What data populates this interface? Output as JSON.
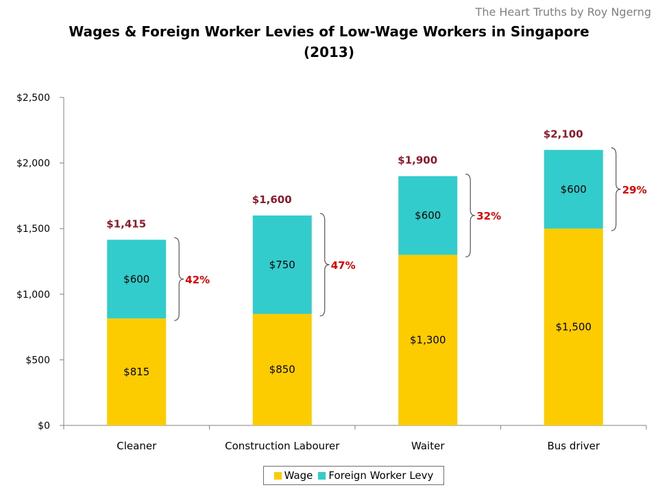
{
  "credit": "The Heart Truths by Roy Ngerng",
  "colors": {
    "wage": "#fccc00",
    "levy": "#33cccc",
    "total_label": "#8b1a2b",
    "pct_label": "#e00000",
    "axis": "#808080"
  },
  "chart_data": {
    "type": "bar",
    "stacked": true,
    "title": "Wages & Foreign Worker Levies of Low-Wage Workers in Singapore",
    "subtitle": "(2013)",
    "categories": [
      "Cleaner",
      "Construction Labourer",
      "Waiter",
      "Bus driver"
    ],
    "series": [
      {
        "name": "Wage",
        "values": [
          815,
          850,
          1300,
          1500
        ],
        "labels": [
          "$815",
          "$850",
          "$1,300",
          "$1,500"
        ]
      },
      {
        "name": "Foreign Worker Levy",
        "values": [
          600,
          750,
          600,
          600
        ],
        "labels": [
          "$600",
          "$750",
          "$600",
          "$600"
        ]
      }
    ],
    "totals": [
      "$1,415",
      "$1,600",
      "$1,900",
      "$2,100"
    ],
    "levy_shares": [
      "42%",
      "47%",
      "32%",
      "29%"
    ],
    "ylim": [
      0,
      2500
    ],
    "yticks": [
      0,
      500,
      1000,
      1500,
      2000,
      2500
    ],
    "ytick_labels": [
      "$0",
      "$500",
      "$1,000",
      "$1,500",
      "$2,000",
      "$2,500"
    ],
    "grid": false,
    "legend_position": "bottom"
  }
}
